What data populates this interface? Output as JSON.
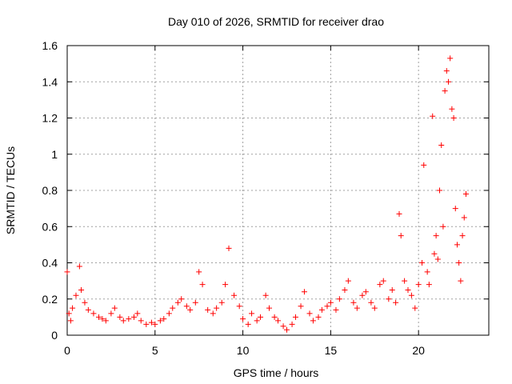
{
  "chart_data": {
    "type": "scatter",
    "title": "Day 010 of 2026, SRMTID for receiver drao",
    "xlabel": "GPS time / hours",
    "ylabel": "SRMTID / TECUs",
    "xlim": [
      0,
      24
    ],
    "ylim": [
      0,
      1.6
    ],
    "xticks": [
      0,
      5,
      10,
      15,
      20
    ],
    "xtick_labels": [
      "0",
      "5",
      "10",
      "15",
      "20"
    ],
    "yticks": [
      0,
      0.2,
      0.4,
      0.6,
      0.8,
      1.0,
      1.2,
      1.4,
      1.6
    ],
    "ytick_labels": [
      "0",
      "0.2",
      "0.4",
      "0.6",
      "0.8",
      "1",
      "1.2",
      "1.4",
      "1.6"
    ],
    "grid": true,
    "marker": "+",
    "colors": {
      "series": "#ff0000",
      "grid": "#a0a0a0",
      "axis": "#000000"
    },
    "series": [
      {
        "name": "SRMTID",
        "x": [
          0.0,
          0.1,
          0.2,
          0.3,
          0.5,
          0.7,
          0.8,
          1.0,
          1.2,
          1.5,
          1.8,
          2.0,
          2.2,
          2.5,
          2.7,
          3.0,
          3.2,
          3.5,
          3.8,
          4.0,
          4.2,
          4.5,
          4.8,
          5.0,
          5.3,
          5.5,
          5.8,
          6.0,
          6.3,
          6.5,
          6.8,
          7.0,
          7.3,
          7.5,
          7.7,
          8.0,
          8.3,
          8.5,
          8.8,
          9.0,
          9.2,
          9.5,
          9.8,
          10.0,
          10.3,
          10.5,
          10.8,
          11.0,
          11.3,
          11.5,
          11.8,
          12.0,
          12.3,
          12.5,
          12.8,
          13.0,
          13.3,
          13.5,
          13.8,
          14.0,
          14.3,
          14.5,
          14.8,
          15.0,
          15.3,
          15.5,
          15.8,
          16.0,
          16.3,
          16.5,
          16.8,
          17.0,
          17.3,
          17.5,
          17.8,
          18.0,
          18.3,
          18.5,
          18.7,
          18.9,
          19.0,
          19.2,
          19.4,
          19.6,
          19.8,
          20.0,
          20.2,
          20.3,
          20.5,
          20.6,
          20.8,
          20.9,
          21.0,
          21.1,
          21.2,
          21.3,
          21.4,
          21.5,
          21.6,
          21.7,
          21.8,
          21.9,
          22.0,
          22.1,
          22.2,
          22.3,
          22.4,
          22.5,
          22.6,
          22.7
        ],
        "y": [
          0.35,
          0.12,
          0.08,
          0.15,
          0.22,
          0.38,
          0.25,
          0.18,
          0.14,
          0.12,
          0.1,
          0.09,
          0.08,
          0.12,
          0.15,
          0.1,
          0.08,
          0.09,
          0.1,
          0.12,
          0.08,
          0.06,
          0.07,
          0.06,
          0.08,
          0.09,
          0.12,
          0.15,
          0.18,
          0.2,
          0.16,
          0.14,
          0.18,
          0.35,
          0.28,
          0.14,
          0.12,
          0.15,
          0.18,
          0.28,
          0.48,
          0.22,
          0.16,
          0.09,
          0.06,
          0.12,
          0.08,
          0.1,
          0.22,
          0.15,
          0.1,
          0.08,
          0.05,
          0.03,
          0.06,
          0.1,
          0.16,
          0.24,
          0.12,
          0.08,
          0.1,
          0.14,
          0.16,
          0.18,
          0.14,
          0.2,
          0.25,
          0.3,
          0.18,
          0.15,
          0.22,
          0.24,
          0.18,
          0.15,
          0.28,
          0.3,
          0.2,
          0.25,
          0.18,
          0.67,
          0.55,
          0.3,
          0.25,
          0.22,
          0.15,
          0.28,
          0.4,
          0.94,
          0.35,
          0.28,
          1.21,
          0.45,
          0.55,
          0.42,
          0.8,
          1.05,
          0.6,
          1.35,
          1.46,
          1.4,
          1.53,
          1.25,
          1.2,
          0.7,
          0.5,
          0.4,
          0.3,
          0.55,
          0.65,
          0.78
        ]
      }
    ]
  }
}
